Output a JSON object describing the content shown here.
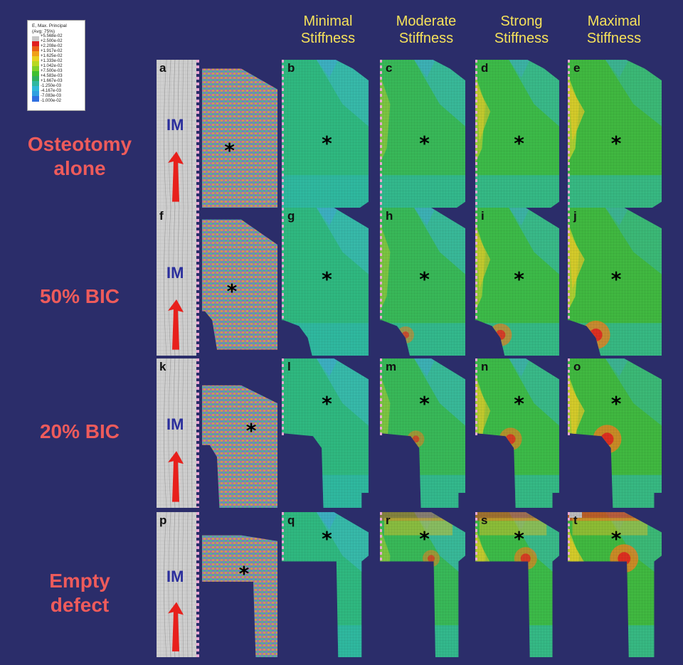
{
  "legend": {
    "title": "E, Max. Principal\n(Avg: 75%)",
    "levels": [
      "+5.568e-02",
      "+2.500e-02",
      "+2.208e-02",
      "+1.917e-02",
      "+1.625e-02",
      "+1.333e-02",
      "+1.042e-02",
      "+7.500e-03",
      "+4.583e-03",
      "+1.667e-03",
      "-1.250e-03",
      "-4.167e-03",
      "-7.083e-03",
      "-1.000e-02"
    ],
    "colors": [
      "#c8c8c8",
      "#e02020",
      "#e86018",
      "#f0a018",
      "#e8d020",
      "#b8d820",
      "#80d028",
      "#40c030",
      "#30b060",
      "#30b8a0",
      "#30b8d8",
      "#30a0e0",
      "#3070e0",
      "#2040c0"
    ]
  },
  "columns": [
    "Minimal\nStiffness",
    "Moderate\nStiffness",
    "Strong\nStiffness",
    "Maximal\nStiffness"
  ],
  "rows": [
    {
      "label": "Osteotomy\nalone",
      "letters": [
        "a",
        "b",
        "c",
        "d",
        "e"
      ],
      "shape": "full"
    },
    {
      "label": "50% BIC",
      "letters": [
        "f",
        "g",
        "h",
        "i",
        "j"
      ],
      "shape": "half"
    },
    {
      "label": "20% BIC",
      "letters": [
        "k",
        "l",
        "m",
        "n",
        "o"
      ],
      "shape": "twenty"
    },
    {
      "label": "Empty\ndefect",
      "letters": [
        "p",
        "q",
        "r",
        "s",
        "t"
      ],
      "shape": "empty"
    }
  ],
  "implant_label": "IM",
  "graft_marker": "*",
  "colors": {
    "background": "#2b2d6a",
    "header_text": "#f6e25a",
    "row_text": "#ee5b5b",
    "implant_text": "#2a2e9c",
    "arrow": "#e8201c"
  },
  "icons": {
    "load_arrow": "arrow-up-icon"
  }
}
